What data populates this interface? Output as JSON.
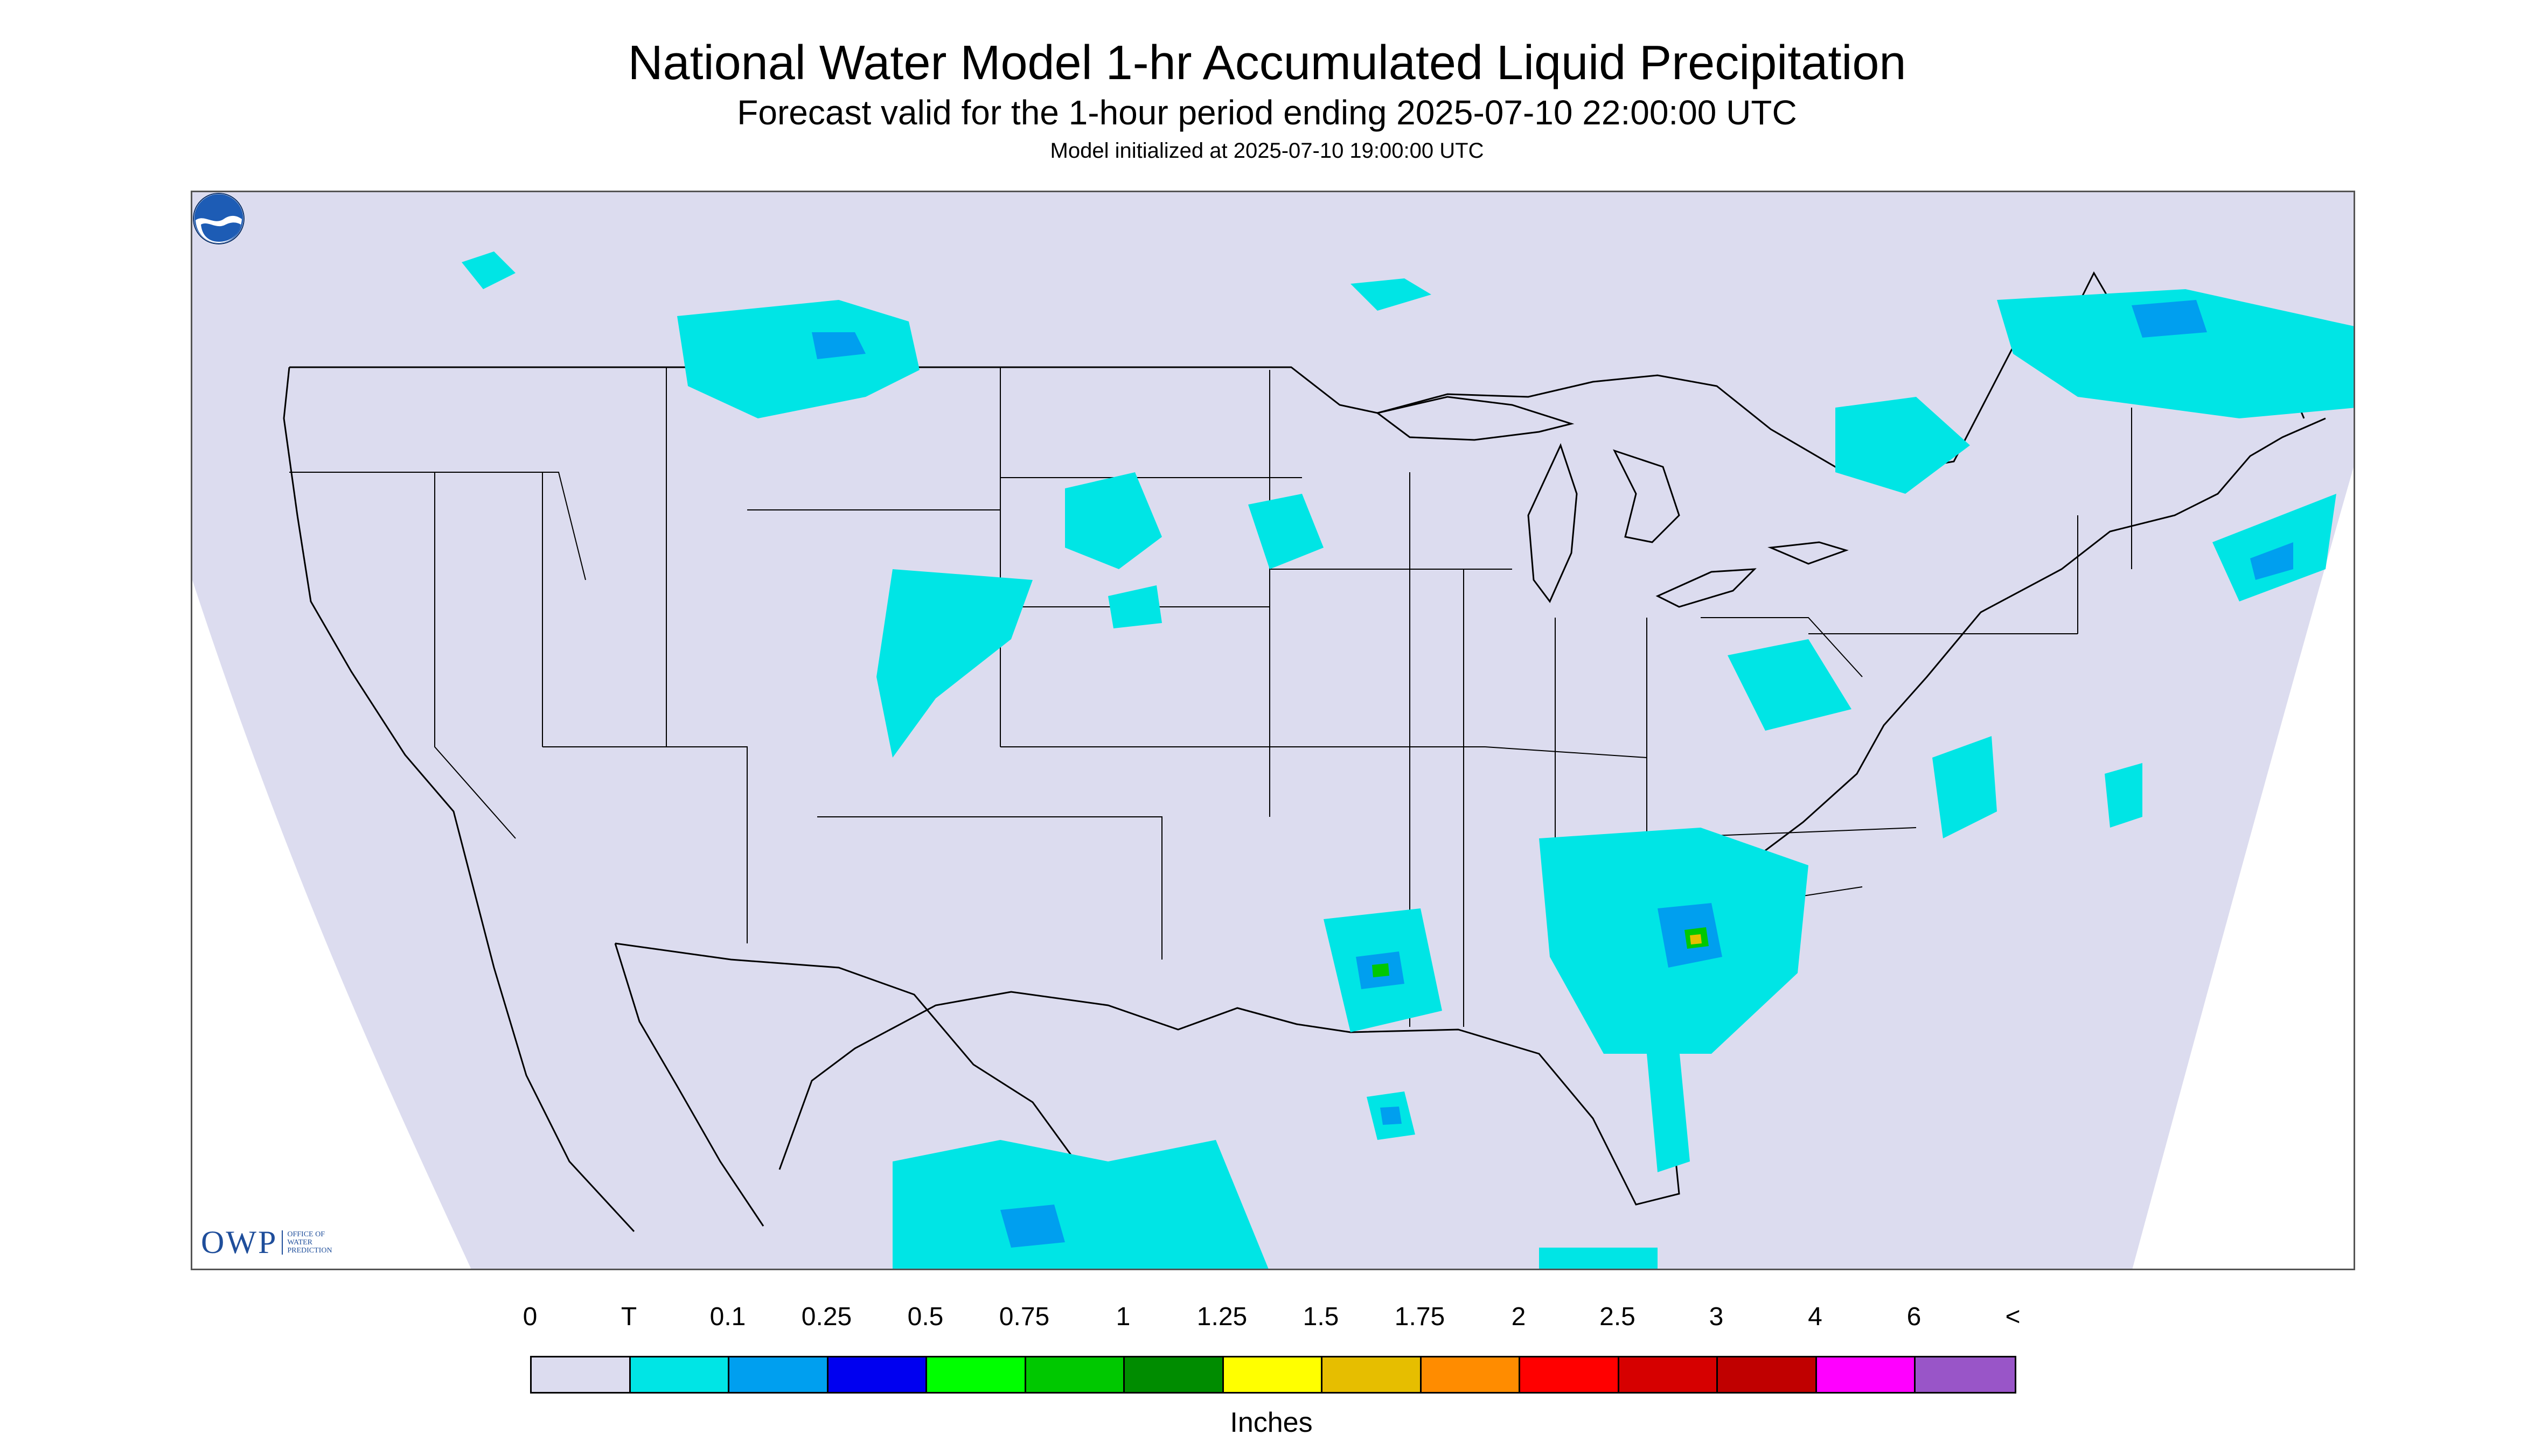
{
  "header": {
    "title": "National Water Model 1-hr Accumulated Liquid Precipitation",
    "subtitle": "Forecast valid for the 1-hour period ending 2025-07-10 22:00:00 UTC",
    "init": "Model initialized at 2025-07-10 19:00:00 UTC"
  },
  "logos": {
    "owp_mark": "OWP",
    "owp_text": "Office of Water Prediction",
    "noaa_icon": "noaa-logo-icon"
  },
  "colors": {
    "map_bg": "#dcdcef",
    "land_line": "#000000",
    "frame": "#555555"
  },
  "legend": {
    "labels": [
      "0",
      "T",
      "0.1",
      "0.25",
      "0.5",
      "0.75",
      "1",
      "1.25",
      "1.5",
      "1.75",
      "2",
      "2.5",
      "3",
      "4",
      "6",
      "<"
    ],
    "colors": [
      "#dcdcef",
      "#00e5e5",
      "#009fef",
      "#0000f0",
      "#00ff00",
      "#00c800",
      "#008c00",
      "#ffff00",
      "#e6be00",
      "#ff8c00",
      "#ff0000",
      "#d60000",
      "#c00000",
      "#ff00ff",
      "#9955c8"
    ],
    "units": "Inches"
  }
}
